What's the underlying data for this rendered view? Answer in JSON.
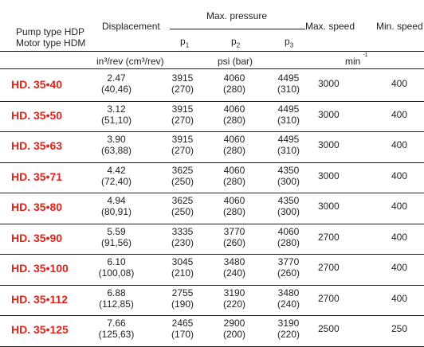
{
  "header": {
    "pump_type": "Pump type HDP",
    "motor_type": "Motor type HDM",
    "displacement": "Displacement",
    "max_pressure": "Max. pressure",
    "max_speed": "Max. speed",
    "min_speed": "Min. speed",
    "p_letter": "p",
    "p1_sub": "1",
    "p2_sub": "2",
    "p3_sub": "3",
    "units_displacement": "in³/rev (cm³/rev)",
    "units_pressure": "psi (bar)",
    "units_speed_base": "min",
    "units_speed_exp": "-1"
  },
  "rows": [
    {
      "model": "HD. 35•40",
      "disp": "2.47",
      "disp_metric": "(40,46)",
      "p1": "3915",
      "p1_bar": "(270)",
      "p2": "4060",
      "p2_bar": "(280)",
      "p3": "4495",
      "p3_bar": "(310)",
      "max_speed": "3000",
      "min_speed": "400"
    },
    {
      "model": "HD. 35•50",
      "disp": "3.12",
      "disp_metric": "(51,10)",
      "p1": "3915",
      "p1_bar": "(270)",
      "p2": "4060",
      "p2_bar": "(280)",
      "p3": "4495",
      "p3_bar": "(310)",
      "max_speed": "3000",
      "min_speed": "400"
    },
    {
      "model": "HD. 35•63",
      "disp": "3.90",
      "disp_metric": "(63,88)",
      "p1": "3915",
      "p1_bar": "(270)",
      "p2": "4060",
      "p2_bar": "(280)",
      "p3": "4495",
      "p3_bar": "(310)",
      "max_speed": "3000",
      "min_speed": "400"
    },
    {
      "model": "HD. 35•71",
      "disp": "4.42",
      "disp_metric": "(72,40)",
      "p1": "3625",
      "p1_bar": "(250)",
      "p2": "4060",
      "p2_bar": "(280)",
      "p3": "4350",
      "p3_bar": "(300)",
      "max_speed": "3000",
      "min_speed": "400"
    },
    {
      "model": "HD. 35•80",
      "disp": "4.94",
      "disp_metric": "(80,91)",
      "p1": "3625",
      "p1_bar": "(250)",
      "p2": "4060",
      "p2_bar": "(280)",
      "p3": "4350",
      "p3_bar": "(300)",
      "max_speed": "3000",
      "min_speed": "400"
    },
    {
      "model": "HD. 35•90",
      "disp": "5.59",
      "disp_metric": "(91,56)",
      "p1": "3335",
      "p1_bar": "(230)",
      "p2": "3770",
      "p2_bar": "(260)",
      "p3": "4060",
      "p3_bar": "(280)",
      "max_speed": "2700",
      "min_speed": "400"
    },
    {
      "model": "HD. 35•100",
      "disp": "6.10",
      "disp_metric": "(100,08)",
      "p1": "3045",
      "p1_bar": "(210)",
      "p2": "3480",
      "p2_bar": "(240)",
      "p3": "3770",
      "p3_bar": "(260)",
      "max_speed": "2700",
      "min_speed": "400"
    },
    {
      "model": "HD. 35•112",
      "disp": "6.88",
      "disp_metric": "(112,85)",
      "p1": "2755",
      "p1_bar": "(190)",
      "p2": "3190",
      "p2_bar": "(220)",
      "p3": "3480",
      "p3_bar": "(240)",
      "max_speed": "2700",
      "min_speed": "400"
    },
    {
      "model": "HD. 35•125",
      "disp": "7.66",
      "disp_metric": "(125,63)",
      "p1": "2465",
      "p1_bar": "(170)",
      "p2": "2900",
      "p2_bar": "(200)",
      "p3": "3190",
      "p3_bar": "(220)",
      "max_speed": "2500",
      "min_speed": "250"
    }
  ]
}
